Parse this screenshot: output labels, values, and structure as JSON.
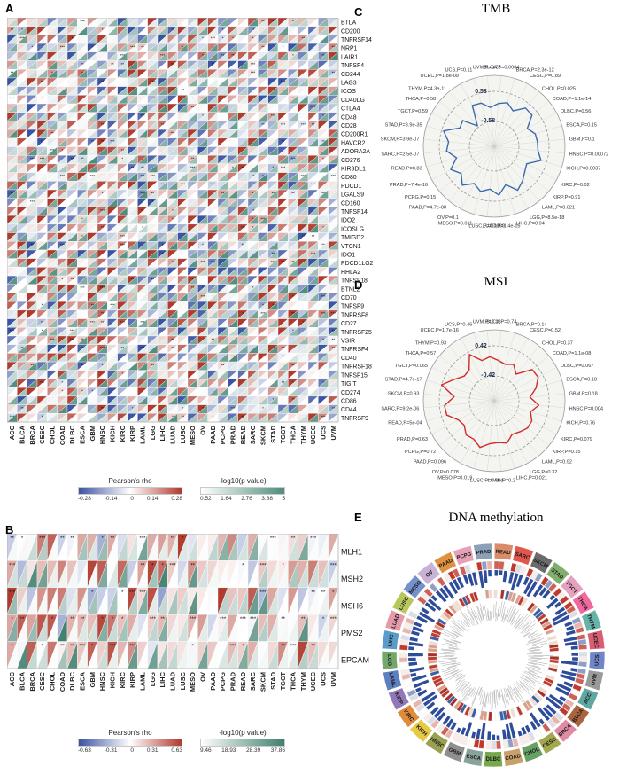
{
  "chart_data": [
    {
      "id": "A",
      "panel_label": "A",
      "type": "heatmap",
      "description": "Split-cell heatmap: upper-left triangle = Pearson's rho, lower-right triangle = -log10(p value), of immune checkpoint genes vs TCGA cancer types; cell shading approximate",
      "rows": [
        "BTLA",
        "CD200",
        "TNFRSF14",
        "NRP1",
        "LAIR1",
        "TNFSF4",
        "CD244",
        "LAG3",
        "ICOS",
        "CD40LG",
        "CTLA4",
        "CD48",
        "CD28",
        "CD200R1",
        "HAVCR2",
        "ADORA2A",
        "CD276",
        "KIR3DL1",
        "CD80",
        "PDCD1",
        "LGALS9",
        "CD160",
        "TNFSF14",
        "IDO2",
        "ICOSLG",
        "TMIGD2",
        "VTCN1",
        "IDO1",
        "PDCD1LG2",
        "HHLA2",
        "TNFSF18",
        "BTNL2",
        "CD70",
        "TNFSF9",
        "TNFRSF8",
        "CD27",
        "TNFRSF25",
        "VSIR",
        "TNFRSF4",
        "CD40",
        "TNFRSF18",
        "TNFSF15",
        "TIGIT",
        "CD274",
        "CD86",
        "CD44",
        "TNFRSF9"
      ],
      "cols": [
        "ACC",
        "BLCA",
        "BRCA",
        "CESC",
        "CHOL",
        "COAD",
        "DLBC",
        "ESCA",
        "GBM",
        "HNSC",
        "KICH",
        "KIRC",
        "KIRP",
        "LAML",
        "LGG",
        "LIHC",
        "LUAD",
        "LUSC",
        "MESO",
        "OV",
        "PAAD",
        "PCPG",
        "PRAD",
        "READ",
        "SARC",
        "SKCM",
        "STAD",
        "TGCT",
        "THCA",
        "THYM",
        "UCEC",
        "UCS",
        "UVM"
      ],
      "legend": {
        "rho_title": "Pearson's rho",
        "rho_ticks": [
          "-0.28",
          "-0.14",
          "0",
          "0.14",
          "0.28"
        ],
        "p_title": "-log10(p value)",
        "p_ticks": [
          "0.52",
          "1.64",
          "2.76",
          "3.88",
          "5"
        ]
      },
      "style": {
        "seed": 11,
        "rho_max": 0.28,
        "neg_color": "#3c52a3",
        "pos_color": "#b03a2e",
        "p_color": "#4e8d7c",
        "rho_bias": 0.03,
        "rho_spread": 0.42,
        "p_pow": 2.2,
        "star_prob": 0.16
      }
    },
    {
      "id": "B",
      "panel_label": "B",
      "type": "heatmap",
      "description": "Split-cell heatmap of mismatch-repair genes vs TCGA cancer types; cell shading approximate",
      "rows": [
        "MLH1",
        "MSH2",
        "MSH6",
        "PMS2",
        "EPCAM"
      ],
      "cols": [
        "ACC",
        "BLCA",
        "BRCA",
        "CESC",
        "CHOL",
        "COAD",
        "DLBC",
        "ESCA",
        "GBM",
        "HNSC",
        "KICH",
        "KIRC",
        "KIRP",
        "LAML",
        "LGG",
        "LIHC",
        "LUAD",
        "LUSC",
        "MESO",
        "OV",
        "PAAD",
        "PCPG",
        "PRAD",
        "READ",
        "SARC",
        "SKCM",
        "STAD",
        "TGCT",
        "THCA",
        "THYM",
        "UCEC",
        "UCS",
        "UVM"
      ],
      "legend": {
        "rho_title": "Pearson's rho",
        "rho_ticks": [
          "-0.63",
          "-0.31",
          "0",
          "0.31",
          "0.63"
        ],
        "p_title": "-log10(p value)",
        "p_ticks": [
          "9.46",
          "18.93",
          "28.39",
          "37.86"
        ]
      },
      "style": {
        "seed": 29,
        "rho_max": 0.63,
        "neg_color": "#3c52a3",
        "pos_color": "#b03a2e",
        "p_color": "#3f7f6e",
        "rho_bias": 0.17,
        "rho_spread": 0.55,
        "p_pow": 2.6,
        "star_prob": 0.4
      }
    },
    {
      "id": "C",
      "panel_label": "C",
      "type": "radar",
      "title": "TMB",
      "axis_max": 0.58,
      "axis_max_label": "0.58",
      "axis_min_label": "-0.58",
      "color": "#3a6aad",
      "items": [
        {
          "label": "BLCA,P=0.0064",
          "value": 0.12
        },
        {
          "label": "BRCA,P=2.3e-12",
          "value": 0.22
        },
        {
          "label": "CESC,P=0.89",
          "value": 0.01
        },
        {
          "label": "CHOL,P=0.025",
          "value": 0.37
        },
        {
          "label": "COAD,P=1.1e-14",
          "value": 0.35
        },
        {
          "label": "DLBC,P=0.56",
          "value": -0.09
        },
        {
          "label": "ESCA,P=0.15",
          "value": 0.12
        },
        {
          "label": "GBM,P=0.1",
          "value": 0.14
        },
        {
          "label": "HNSC,P=0.00072",
          "value": 0.16
        },
        {
          "label": "KICH,P=0.0037",
          "value": 0.35
        },
        {
          "label": "KIRC,P=0.02",
          "value": -0.11
        },
        {
          "label": "KIRP,P=0.91",
          "value": -0.01
        },
        {
          "label": "LAML,P=0.021",
          "value": 0.19
        },
        {
          "label": "LGG,P=8.5e-18",
          "value": 0.38
        },
        {
          "label": "LIHC,P=0.94",
          "value": 0.01
        },
        {
          "label": "LUAD,P=1.4e-15",
          "value": 0.35
        },
        {
          "label": "LUSC,P=0.0069",
          "value": 0.12
        },
        {
          "label": "MESO,P=0.011",
          "value": 0.28
        },
        {
          "label": "OV,P=0.1",
          "value": 0.09
        },
        {
          "label": "PAAD,P=4.7e-08",
          "value": 0.4
        },
        {
          "label": "PCPG,P=0.15",
          "value": 0.11
        },
        {
          "label": "PRAD,P=7.4e-16",
          "value": 0.36
        },
        {
          "label": "READ,P=0.83",
          "value": -0.02
        },
        {
          "label": "SARC,P=2.5e-07",
          "value": 0.31
        },
        {
          "label": "SKCM,P=3.9e-07",
          "value": 0.23
        },
        {
          "label": "STAD,P=8.9e-35",
          "value": 0.5
        },
        {
          "label": "TGCT,P=0.59",
          "value": -0.04
        },
        {
          "label": "THCA,P=0.58",
          "value": 0.03
        },
        {
          "label": "THYM,P=4.3e-11",
          "value": -0.52
        },
        {
          "label": "UCEC,P=1.8e-09",
          "value": 0.25
        },
        {
          "label": "UCS,P=0.11",
          "value": 0.2
        },
        {
          "label": "UVM,P=0.78",
          "value": -0.03
        }
      ]
    },
    {
      "id": "D",
      "panel_label": "D",
      "type": "radar",
      "title": "MSI",
      "axis_max": 0.42,
      "axis_max_label": "0.42",
      "axis_min_label": "-0.42",
      "color": "#cf2b2b",
      "items": [
        {
          "label": "BLCA,P=0.74",
          "value": 0.02
        },
        {
          "label": "BRCA,P=0.14",
          "value": -0.05
        },
        {
          "label": "CESC,P=0.52",
          "value": 0.04
        },
        {
          "label": "CHOL,P=0.37",
          "value": -0.15
        },
        {
          "label": "COAD,P=1.1e-08",
          "value": 0.26
        },
        {
          "label": "DLBC,P=0.067",
          "value": 0.28
        },
        {
          "label": "ESCA,P=0.18",
          "value": 0.11
        },
        {
          "label": "GBM,P=0.18",
          "value": -0.11
        },
        {
          "label": "HNSC,P=0.004",
          "value": 0.14
        },
        {
          "label": "KICH,P=0.76",
          "value": -0.05
        },
        {
          "label": "KIRC,P=0.079",
          "value": 0.08
        },
        {
          "label": "KIRP,P=0.15",
          "value": 0.09
        },
        {
          "label": "LAML,P=0.92",
          "value": 0.01
        },
        {
          "label": "LGG,P=0.32",
          "value": -0.05
        },
        {
          "label": "LIHC,P=0.021",
          "value": 0.12
        },
        {
          "label": "LUAD,P=0.2",
          "value": 0.06
        },
        {
          "label": "LUSC,P=0.064",
          "value": 0.09
        },
        {
          "label": "MESO,P=0.019",
          "value": 0.25
        },
        {
          "label": "OV,P=0.078",
          "value": 0.1
        },
        {
          "label": "PAAD,P=0.096",
          "value": 0.12
        },
        {
          "label": "PCPG,P=0.72",
          "value": -0.03
        },
        {
          "label": "PRAD,P=0.63",
          "value": 0.02
        },
        {
          "label": "READ,P=5e-04",
          "value": 0.27
        },
        {
          "label": "SARC,P=9.2e-06",
          "value": 0.28
        },
        {
          "label": "SKCM,P=0.93",
          "value": 0.01
        },
        {
          "label": "STAD,P=4.7e-17",
          "value": 0.42
        },
        {
          "label": "TGCT,P=0.065",
          "value": 0.15
        },
        {
          "label": "THCA,P=0.57",
          "value": -0.03
        },
        {
          "label": "THYM,P=0.93",
          "value": -0.01
        },
        {
          "label": "UCEC,P=1.7e-16",
          "value": 0.35
        },
        {
          "label": "UCS,P=0.46",
          "value": 0.06
        },
        {
          "label": "UVM,P=0.18",
          "value": 0.12
        }
      ]
    },
    {
      "id": "E",
      "panel_label": "E",
      "type": "circos",
      "title": "DNA methylation",
      "description": "Circular plot of DNA methylation associations per cancer type; inner rings approximate",
      "style": {
        "seed": 47
      },
      "segments": [
        {
          "label": "READ",
          "color": "#d98b6a"
        },
        {
          "label": "SARC",
          "color": "#e2574c"
        },
        {
          "label": "SKCM",
          "color": "#6b6b6b"
        },
        {
          "label": "STAD",
          "color": "#7fae6d"
        },
        {
          "label": "TGCT",
          "color": "#e7a1c0"
        },
        {
          "label": "THCA",
          "color": "#f0699e"
        },
        {
          "label": "THYM",
          "color": "#66b3a9"
        },
        {
          "label": "UCEC",
          "color": "#d95d74"
        },
        {
          "label": "UCS",
          "color": "#6f86c9"
        },
        {
          "label": "UVM",
          "color": "#9a9a9a"
        },
        {
          "label": "ACC",
          "color": "#5fa8a0"
        },
        {
          "label": "BLCA",
          "color": "#a8643f"
        },
        {
          "label": "BRCA",
          "color": "#e08ba6"
        },
        {
          "label": "CESC",
          "color": "#a3a84e"
        },
        {
          "label": "CHOL",
          "color": "#67a063"
        },
        {
          "label": "COAD",
          "color": "#c8a06a"
        },
        {
          "label": "DLBC",
          "color": "#78a84e"
        },
        {
          "label": "ESCA",
          "color": "#8aa39a"
        },
        {
          "label": "GBM",
          "color": "#8f8f8f"
        },
        {
          "label": "HNSC",
          "color": "#9aa04f"
        },
        {
          "label": "KICH",
          "color": "#e7c943"
        },
        {
          "label": "KIRC",
          "color": "#e08a3c"
        },
        {
          "label": "KIRP",
          "color": "#9378b8"
        },
        {
          "label": "LAML",
          "color": "#5c7fc0"
        },
        {
          "label": "LGG",
          "color": "#74a86a"
        },
        {
          "label": "LIHC",
          "color": "#5a9bc9"
        },
        {
          "label": "LUAD",
          "color": "#e59aaa"
        },
        {
          "label": "LUSC",
          "color": "#b7c75c"
        },
        {
          "label": "MESO",
          "color": "#7491cc"
        },
        {
          "label": "OV",
          "color": "#c9b2d6"
        },
        {
          "label": "PAAD",
          "color": "#e0913f"
        },
        {
          "label": "PCPG",
          "color": "#e6a0b8"
        },
        {
          "label": "PRAD",
          "color": "#8ca0b8"
        }
      ]
    }
  ]
}
